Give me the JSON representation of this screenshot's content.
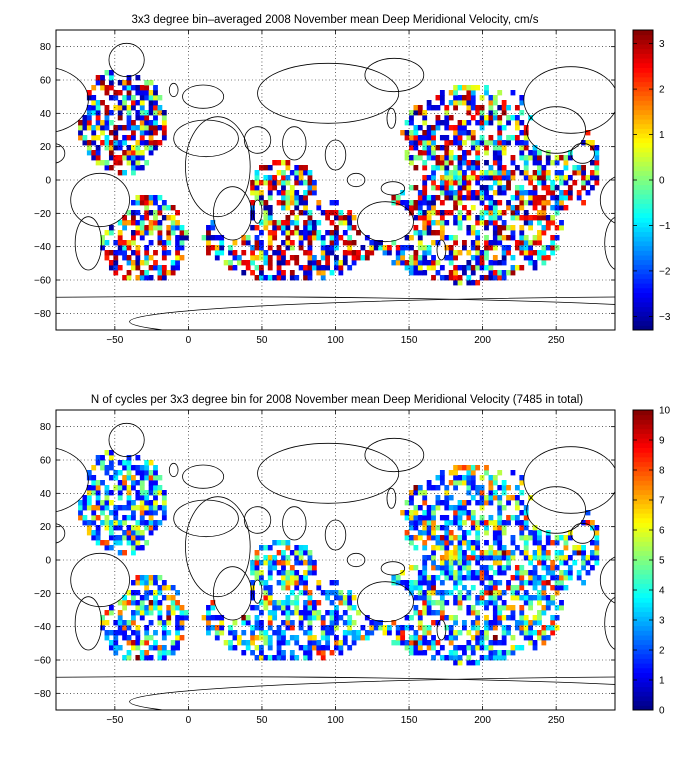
{
  "chart_data": [
    {
      "type": "heatmap",
      "title": "3x3 degree bin–averaged 2008 November mean Deep Meridional Velocity, cm/s",
      "xlabel": "",
      "ylabel": "",
      "xlim": [
        -90,
        290
      ],
      "ylim": [
        -90,
        90
      ],
      "x_ticks": [
        -50,
        0,
        50,
        100,
        150,
        200,
        250
      ],
      "y_ticks": [
        -80,
        -60,
        -40,
        -20,
        0,
        20,
        40,
        60,
        80
      ],
      "grid": true,
      "bin_size_deg": 3,
      "colormap": "jet",
      "colorbar": {
        "min": -3.3,
        "max": 3.3,
        "ticks": [
          -3,
          -2,
          -1,
          0,
          1,
          2,
          3
        ]
      },
      "value_mode": "velocity",
      "seed": 7
    },
    {
      "type": "heatmap",
      "title": "N of cycles per 3x3 degree bin for 2008 November mean Deep Meridional Velocity (7485 in total)",
      "xlabel": "",
      "ylabel": "",
      "xlim": [
        -90,
        290
      ],
      "ylim": [
        -90,
        90
      ],
      "x_ticks": [
        -50,
        0,
        50,
        100,
        150,
        200,
        250
      ],
      "y_ticks": [
        -80,
        -60,
        -40,
        -20,
        0,
        20,
        40,
        60,
        80
      ],
      "grid": true,
      "bin_size_deg": 3,
      "colormap": "jet",
      "colorbar": {
        "min": 0,
        "max": 10,
        "ticks": [
          0,
          1,
          2,
          3,
          4,
          5,
          6,
          7,
          8,
          9,
          10
        ]
      },
      "value_mode": "count",
      "seed": 7
    }
  ]
}
